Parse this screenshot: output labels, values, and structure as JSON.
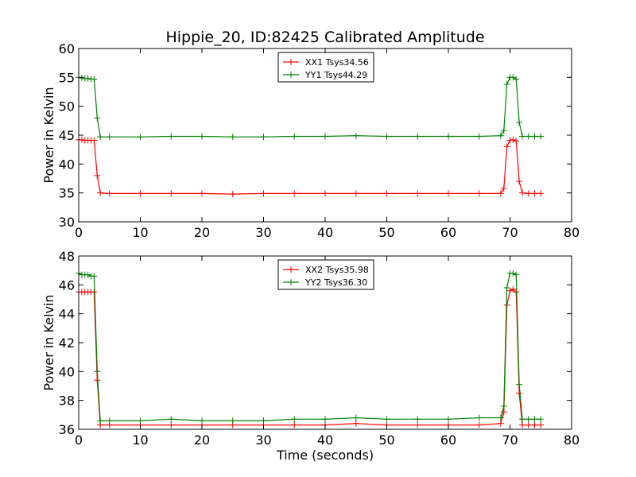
{
  "chart_data": [
    {
      "type": "line",
      "title": "Hippie_20, ID:82425 Calibrated Amplitude",
      "xlabel": "",
      "ylabel": "Power in Kelvin",
      "xlim": [
        0,
        80
      ],
      "ylim": [
        30,
        60
      ],
      "xticks": [
        "0",
        "10",
        "20",
        "30",
        "40",
        "50",
        "60",
        "70",
        "80"
      ],
      "yticks": [
        "30",
        "35",
        "40",
        "45",
        "50",
        "55",
        "60"
      ],
      "legend_position": "top-center",
      "series": [
        {
          "name": "XX1 Tsys34.56",
          "color": "#ff0000",
          "x": [
            0,
            0.5,
            1,
            1.5,
            2,
            2.5,
            3,
            3.5,
            5,
            10,
            15,
            20,
            25,
            30,
            35,
            40,
            45,
            50,
            55,
            60,
            65,
            68.5,
            69,
            69.5,
            70,
            70.5,
            71,
            71.5,
            72,
            73,
            74,
            75
          ],
          "y": [
            44.2,
            44.2,
            44.1,
            44.1,
            44.1,
            44.1,
            38,
            35,
            34.9,
            34.9,
            34.9,
            34.9,
            34.8,
            34.9,
            34.9,
            34.9,
            34.9,
            34.9,
            34.9,
            34.9,
            34.9,
            34.9,
            35.8,
            43,
            44.1,
            44.2,
            44,
            37,
            35,
            34.9,
            34.9,
            34.9
          ]
        },
        {
          "name": "YY1 Tsys44.29",
          "color": "#008000",
          "x": [
            0,
            0.5,
            1,
            1.5,
            2,
            2.5,
            3,
            3.5,
            5,
            10,
            15,
            20,
            25,
            30,
            35,
            40,
            45,
            50,
            55,
            60,
            65,
            68.5,
            69,
            69.5,
            70,
            70.5,
            71,
            71.5,
            72,
            73,
            74,
            75
          ],
          "y": [
            55,
            54.9,
            54.8,
            54.8,
            54.7,
            54.7,
            48,
            44.7,
            44.7,
            44.7,
            44.8,
            44.8,
            44.7,
            44.7,
            44.8,
            44.8,
            44.9,
            44.8,
            44.8,
            44.8,
            44.8,
            44.9,
            45.8,
            53.8,
            55,
            55,
            54.7,
            47.2,
            44.8,
            44.8,
            44.8,
            44.8
          ]
        }
      ]
    },
    {
      "type": "line",
      "title": "",
      "xlabel": "Time (seconds)",
      "ylabel": "Power in Kelvin",
      "xlim": [
        0,
        80
      ],
      "ylim": [
        36,
        48
      ],
      "xticks": [
        "0",
        "10",
        "20",
        "30",
        "40",
        "50",
        "60",
        "70",
        "80"
      ],
      "yticks": [
        "36",
        "38",
        "40",
        "42",
        "44",
        "46",
        "48"
      ],
      "legend_position": "top-center",
      "series": [
        {
          "name": "XX2 Tsys35.98",
          "color": "#ff0000",
          "x": [
            0,
            0.5,
            1,
            1.5,
            2,
            2.5,
            3,
            3.5,
            5,
            10,
            15,
            20,
            25,
            30,
            35,
            40,
            45,
            50,
            55,
            60,
            65,
            68.5,
            69,
            69.5,
            70,
            70.5,
            71,
            71.5,
            72,
            73,
            74,
            75
          ],
          "y": [
            45.5,
            45.5,
            45.5,
            45.5,
            45.5,
            45.5,
            39.4,
            36.3,
            36.3,
            36.3,
            36.3,
            36.3,
            36.3,
            36.3,
            36.3,
            36.3,
            36.4,
            36.3,
            36.3,
            36.3,
            36.3,
            36.4,
            37.2,
            44.6,
            45.6,
            45.7,
            45.5,
            38.5,
            36.3,
            36.3,
            36.3,
            36.3
          ]
        },
        {
          "name": "YY2 Tsys36.30",
          "color": "#008000",
          "x": [
            0,
            0.5,
            1,
            1.5,
            2,
            2.5,
            3,
            3.5,
            5,
            10,
            15,
            20,
            25,
            30,
            35,
            40,
            45,
            50,
            55,
            60,
            65,
            68.5,
            69,
            69.5,
            70,
            70.5,
            71,
            71.5,
            72,
            73,
            74,
            75
          ],
          "y": [
            46.8,
            46.7,
            46.7,
            46.7,
            46.6,
            46.6,
            40,
            36.6,
            36.6,
            36.6,
            36.7,
            36.6,
            36.6,
            36.6,
            36.7,
            36.7,
            36.8,
            36.7,
            36.7,
            36.7,
            36.8,
            36.8,
            37.6,
            45.8,
            46.8,
            46.8,
            46.7,
            39.1,
            36.7,
            36.7,
            36.7,
            36.7
          ]
        }
      ]
    }
  ]
}
